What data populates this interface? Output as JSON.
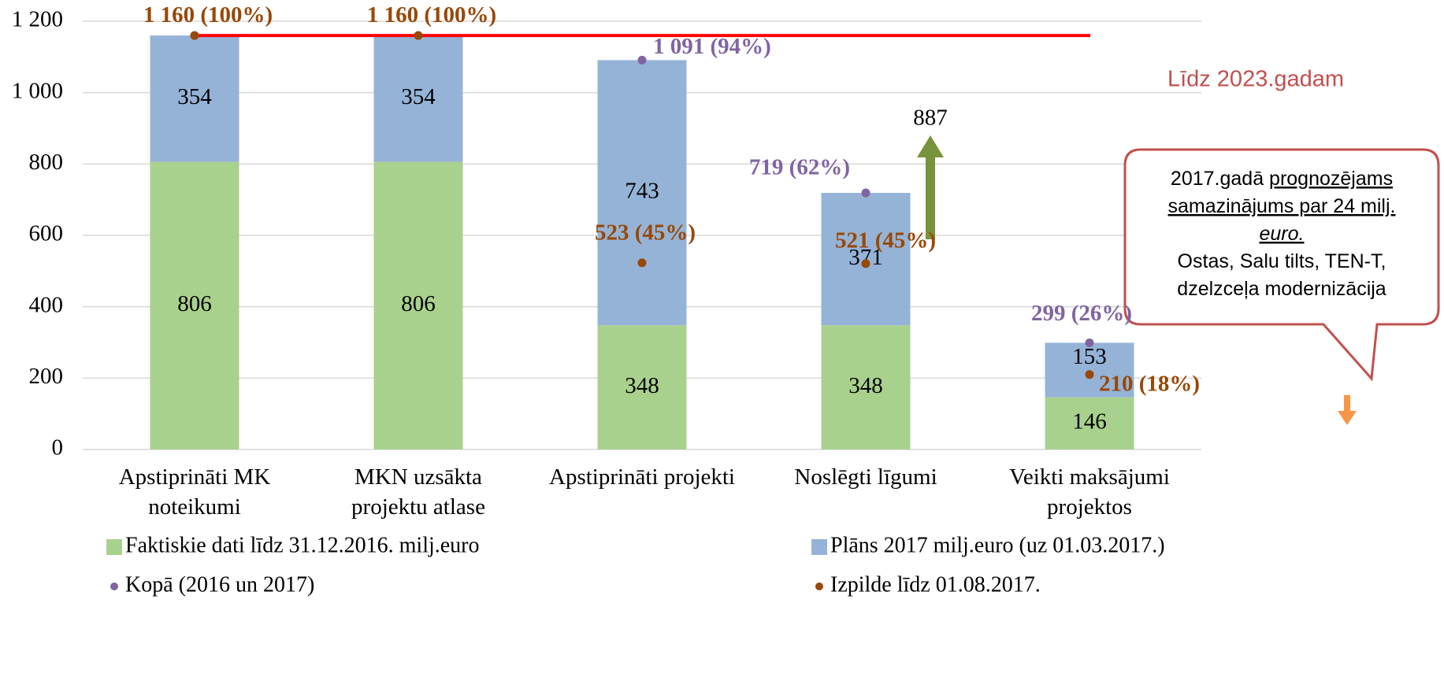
{
  "chart_data": {
    "type": "stacked_bar",
    "categories": [
      [
        "Apstiprināti MK",
        "noteikumi"
      ],
      [
        "MKN uzsākta",
        "projektu atlase"
      ],
      [
        "Apstiprināti projekti"
      ],
      [
        "Noslēgti līgumi"
      ],
      [
        "Veikti maksājumi",
        "projektos"
      ]
    ],
    "series": [
      {
        "name": "Faktiskie dati līdz 31.12.2016. milj.euro",
        "color": "#a9d18e",
        "values": [
          806,
          806,
          348,
          348,
          146
        ]
      },
      {
        "name": "Plāns 2017 milj.euro (uz 01.03.2017.)",
        "color": "#95b3d7",
        "values": [
          354,
          354,
          743,
          371,
          153
        ]
      }
    ],
    "points": [
      {
        "name": "Kopā (2016 un 2017)",
        "color": "#8064a2",
        "values": [
          1160,
          1160,
          1091,
          719,
          299
        ],
        "value_labels": [
          null,
          null,
          "1 091 (94%)",
          "719 (62%)",
          "299 (26%)"
        ]
      },
      {
        "name": "Izpilde līdz 01.08.2017.",
        "color": "#984807",
        "values": [
          1160,
          1160,
          523,
          521,
          210
        ],
        "value_labels": [
          "1 160 (100%)",
          "1 160 (100%)",
          "523 (45%)",
          "521 (45%)",
          "210 (18%)"
        ]
      }
    ],
    "ylim": [
      0,
      1200
    ],
    "yticks": [
      0,
      200,
      400,
      600,
      800,
      {
        "value": 1000,
        "label": "1 000"
      },
      {
        "value": 1200,
        "label": "1 200"
      }
    ],
    "grid": true,
    "target_line": {
      "value": 1160,
      "color": "#ff0000",
      "label": "Līdz 2023.gadam"
    },
    "arrow_label": "887",
    "callout": [
      [
        {
          "text": "2017.gadā "
        },
        {
          "text": "prognozējams",
          "underline": true
        }
      ],
      [
        {
          "text": "samazinājums par 24 milj.",
          "underline": true
        }
      ],
      [
        {
          "text": "euro.",
          "underline": true,
          "italic": true
        }
      ],
      [
        {
          "text": "Ostas, Salu tilts, TEN-T,"
        }
      ],
      [
        {
          "text": "dzelzceļa modernizācija"
        }
      ]
    ]
  }
}
